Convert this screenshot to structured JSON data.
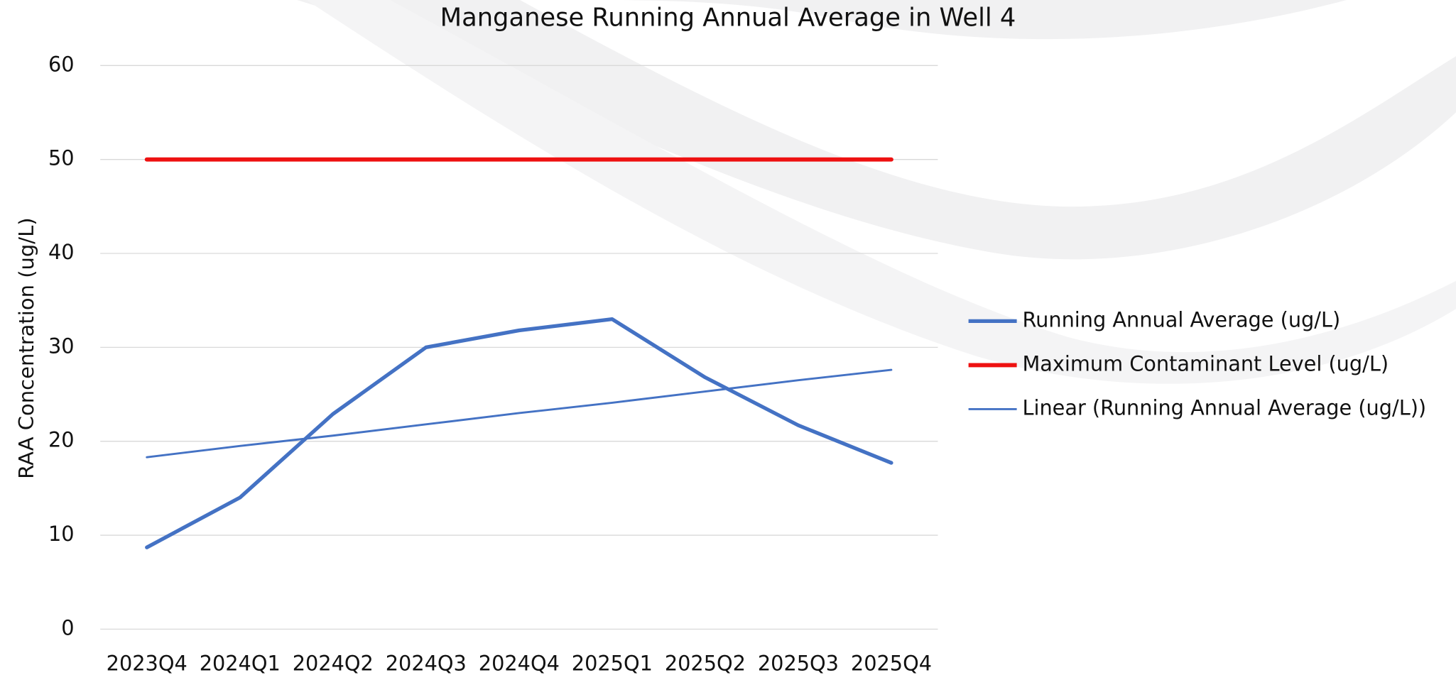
{
  "chart_data": {
    "type": "line",
    "title": "Manganese Running Annual Average in Well 4",
    "y_label": "RAA Concentration (ug/L)",
    "categories": [
      "2023Q4",
      "2024Q1",
      "2024Q2",
      "2024Q3",
      "2024Q4",
      "2025Q1",
      "2025Q2",
      "2025Q3",
      "2025Q4"
    ],
    "series": [
      {
        "name": "Running Annual Average  (ug/L)",
        "color": "#4472c4",
        "values": [
          8.7,
          14,
          22.9,
          30,
          31.8,
          33,
          26.8,
          21.7,
          17.7
        ]
      },
      {
        "name": "Maximum Contaminant Level (ug/L)",
        "color": "#ee1111",
        "values": [
          50,
          50,
          50,
          50,
          50,
          50,
          50,
          50,
          50
        ]
      },
      {
        "name": "Linear (Running Annual Average  (ug/L))",
        "color": "#4472c4",
        "values": [
          18.3,
          19.5,
          20.6,
          21.8,
          23.0,
          24.1,
          25.3,
          26.5,
          27.6
        ]
      }
    ],
    "ylim": [
      0,
      60
    ],
    "yticks": [
      0,
      10,
      20,
      30,
      40,
      50,
      60
    ],
    "grid": true,
    "legend": "right"
  }
}
